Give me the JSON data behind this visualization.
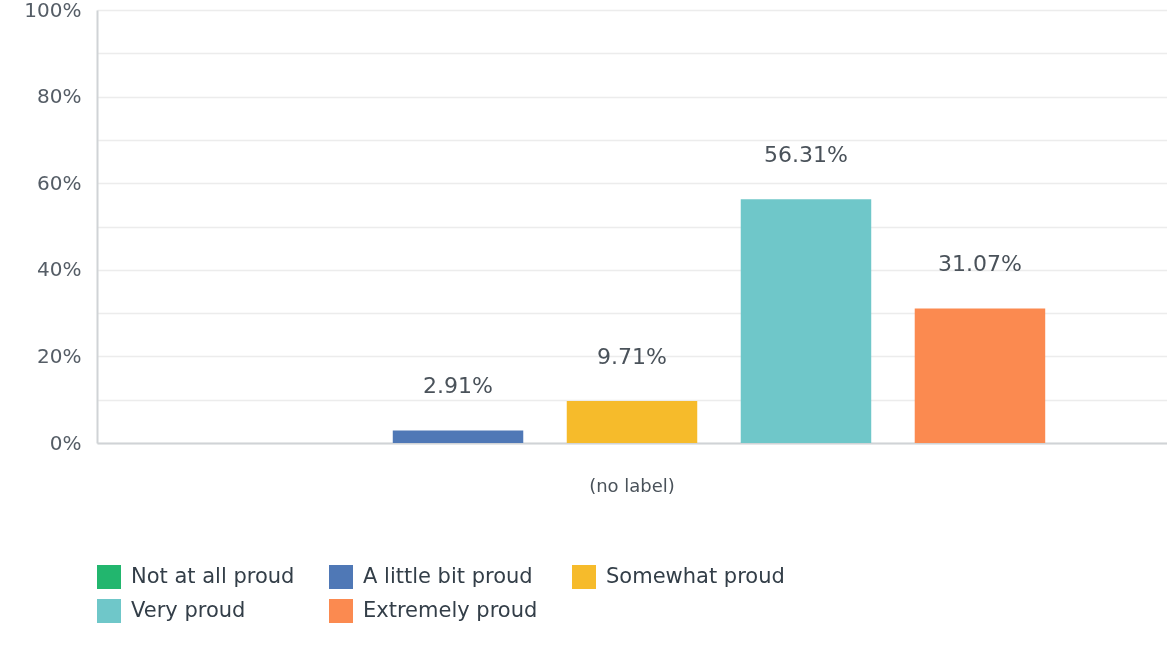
{
  "chart_data": {
    "type": "bar",
    "categories": [
      "(no label)"
    ],
    "series": [
      {
        "name": "Not at all proud",
        "color": "#22b66e",
        "values": [
          0
        ],
        "value_labels": [
          null
        ]
      },
      {
        "name": "A little bit proud",
        "color": "#4f78b6",
        "values": [
          2.91
        ],
        "value_labels": [
          "2.91%"
        ]
      },
      {
        "name": "Somewhat proud",
        "color": "#f6bb2b",
        "values": [
          9.71
        ],
        "value_labels": [
          "9.71%"
        ]
      },
      {
        "name": "Very proud",
        "color": "#6fc7c9",
        "values": [
          56.31
        ],
        "value_labels": [
          "56.31%"
        ]
      },
      {
        "name": "Extremely proud",
        "color": "#fb8a50",
        "values": [
          31.07
        ],
        "value_labels": [
          "31.07%"
        ]
      }
    ],
    "ylim": [
      0,
      100
    ],
    "yticks": [
      {
        "value": 0,
        "label": "0%"
      },
      {
        "value": 10,
        "label": null
      },
      {
        "value": 20,
        "label": "20%"
      },
      {
        "value": 30,
        "label": null
      },
      {
        "value": 40,
        "label": "40%"
      },
      {
        "value": 50,
        "label": null
      },
      {
        "value": 60,
        "label": "60%"
      },
      {
        "value": 70,
        "label": null
      },
      {
        "value": 80,
        "label": "80%"
      },
      {
        "value": 90,
        "label": null
      },
      {
        "value": 100,
        "label": "100%"
      }
    ],
    "grid": true,
    "legend": "bottom"
  }
}
